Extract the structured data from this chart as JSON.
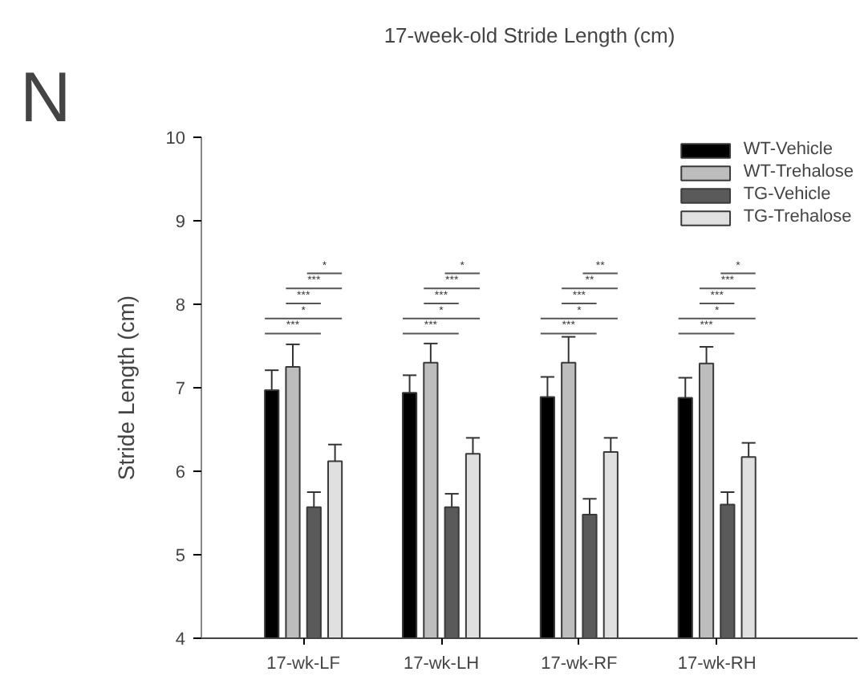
{
  "chart_data": {
    "type": "bar",
    "title": "17-week-old Stride Length (cm)",
    "ylabel": "Stride Length (cm)",
    "categories": [
      "17-wk-LF",
      "17-wk-LH",
      "17-wk-RF",
      "17-wk-RH"
    ],
    "series": [
      {
        "name": "WT-Vehicle",
        "color": "#000000",
        "values": [
          6.97,
          6.94,
          6.89,
          6.88
        ],
        "errors": [
          [
            6.97,
            7.21
          ],
          [
            6.94,
            7.15
          ],
          [
            6.89,
            7.13
          ],
          [
            6.88,
            7.12
          ]
        ]
      },
      {
        "name": "WT-Trehalose",
        "color": "#bdbdbd",
        "values": [
          7.25,
          7.3,
          7.3,
          7.29
        ],
        "errors": [
          [
            7.25,
            7.52
          ],
          [
            7.3,
            7.53
          ],
          [
            7.3,
            7.61
          ],
          [
            7.29,
            7.49
          ]
        ]
      },
      {
        "name": "TG-Vehicle",
        "color": "#5a5a5a",
        "values": [
          5.57,
          5.57,
          5.48,
          5.6
        ],
        "errors": [
          [
            5.57,
            5.75
          ],
          [
            5.57,
            5.73
          ],
          [
            5.48,
            5.67
          ],
          [
            5.6,
            5.75
          ]
        ]
      },
      {
        "name": "TG-Trehalose",
        "color": "#e0e0e0",
        "values": [
          6.12,
          6.21,
          6.23,
          6.17
        ],
        "errors": [
          [
            6.12,
            6.32
          ],
          [
            6.21,
            6.4
          ],
          [
            6.23,
            6.4
          ],
          [
            6.17,
            6.34
          ]
        ]
      }
    ],
    "ylim": [
      4,
      10
    ],
    "yticks": [
      4,
      5,
      6,
      7,
      8,
      9,
      10
    ],
    "grid": false,
    "legend": "top right",
    "annotations": [
      "N",
      "***",
      "*",
      "***",
      "***",
      "*",
      "***",
      "*",
      "***",
      "***",
      "*",
      "***",
      "*",
      "***",
      "**",
      "**",
      "***",
      "*",
      "***",
      "***",
      "*"
    ]
  }
}
